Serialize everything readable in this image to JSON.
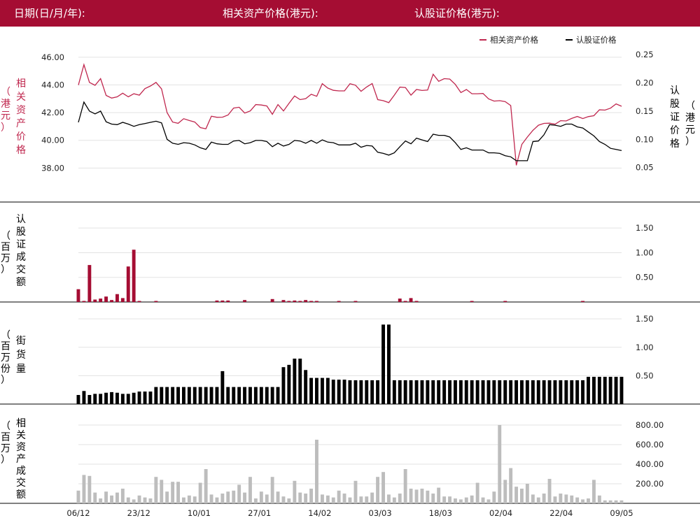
{
  "header": {
    "date_label": "日期(日/月/年):",
    "asset_price_label": "相关资产价格(港元):",
    "warrant_price_label": "认股证价格(港元):"
  },
  "colors": {
    "brand": "#a50d33",
    "asset_line": "#c0284f",
    "warrant_line": "#000000",
    "warrant_turnover_bar": "#a50d33",
    "outstanding_bar": "#000000",
    "asset_turnover_bar": "#bdbdbd"
  },
  "chart_data": [
    {
      "type": "line",
      "legend": [
        "相关资产价格",
        "认股证价格"
      ],
      "legend_position": "top-right",
      "left_axis_label": [
        "相",
        "关",
        "资",
        "产",
        "价",
        "格"
      ],
      "left_axis_unit": [
        "（",
        "港",
        "元",
        "）"
      ],
      "right_axis_label": [
        "认",
        "股",
        "证",
        "价",
        "格"
      ],
      "right_axis_unit": [
        "（",
        "港",
        "元",
        "）"
      ],
      "left_ylim": [
        36.0,
        47.0
      ],
      "left_ticks": [
        "46.00",
        "44.00",
        "42.00",
        "40.00",
        "38.00"
      ],
      "right_ylim": [
        0.0,
        0.27
      ],
      "right_ticks": [
        "0.25",
        "0.20",
        "0.15",
        "0.10",
        "0.05"
      ],
      "grid": true,
      "series": [
        {
          "name": "相关资产价格",
          "axis": "left",
          "values": [
            43.99,
            45.46,
            44.18,
            43.97,
            44.45,
            43.24,
            43.05,
            43.14,
            43.4,
            43.14,
            43.36,
            43.26,
            43.73,
            43.92,
            44.18,
            43.71,
            42.0,
            41.32,
            41.23,
            41.56,
            41.43,
            41.32,
            40.92,
            40.83,
            41.74,
            41.66,
            41.67,
            41.83,
            42.33,
            42.39,
            41.97,
            42.12,
            42.58,
            42.55,
            42.48,
            41.88,
            42.58,
            42.12,
            42.67,
            43.2,
            42.94,
            43.01,
            43.32,
            43.18,
            44.09,
            43.77,
            43.61,
            43.57,
            43.57,
            44.09,
            43.98,
            43.54,
            43.85,
            44.1,
            42.94,
            42.86,
            42.72,
            43.26,
            43.84,
            43.81,
            43.26,
            43.67,
            43.6,
            43.63,
            44.77,
            44.26,
            44.45,
            44.42,
            44.04,
            43.45,
            43.67,
            43.36,
            43.36,
            43.38,
            42.99,
            42.83,
            42.86,
            42.79,
            42.51,
            38.2,
            39.71,
            40.24,
            40.72,
            41.09,
            41.22,
            41.24,
            41.16,
            41.42,
            41.4,
            41.58,
            41.72,
            41.57,
            41.71,
            41.78,
            42.2,
            42.18,
            42.32,
            42.63,
            42.46
          ]
        },
        {
          "name": "认股证价格",
          "axis": "right",
          "values": [
            0.13,
            0.166,
            0.15,
            0.145,
            0.15,
            0.131,
            0.127,
            0.126,
            0.13,
            0.127,
            0.123,
            0.126,
            0.128,
            0.13,
            0.132,
            0.129,
            0.1,
            0.093,
            0.091,
            0.094,
            0.093,
            0.09,
            0.085,
            0.082,
            0.095,
            0.092,
            0.091,
            0.091,
            0.097,
            0.098,
            0.092,
            0.094,
            0.098,
            0.098,
            0.096,
            0.087,
            0.093,
            0.088,
            0.091,
            0.098,
            0.097,
            0.093,
            0.098,
            0.093,
            0.099,
            0.095,
            0.094,
            0.09,
            0.09,
            0.09,
            0.093,
            0.086,
            0.089,
            0.088,
            0.077,
            0.075,
            0.072,
            0.076,
            0.087,
            0.097,
            0.092,
            0.102,
            0.099,
            0.096,
            0.109,
            0.107,
            0.107,
            0.104,
            0.094,
            0.082,
            0.085,
            0.081,
            0.081,
            0.081,
            0.076,
            0.076,
            0.075,
            0.071,
            0.069,
            0.062,
            0.062,
            0.062,
            0.096,
            0.097,
            0.108,
            0.126,
            0.125,
            0.123,
            0.127,
            0.127,
            0.122,
            0.12,
            0.113,
            0.106,
            0.096,
            0.091,
            0.084,
            0.082,
            0.08
          ]
        }
      ]
    },
    {
      "type": "bar",
      "ylabel": [
        "认",
        "股",
        "证",
        "成",
        "交",
        "额"
      ],
      "yunit": [
        "（",
        "百",
        "万",
        "）"
      ],
      "ylim": [
        0,
        1.8
      ],
      "ticks": [
        "1.50",
        "1.00",
        "0.50"
      ],
      "values": [
        0.26,
        0.02,
        0.75,
        0.05,
        0.07,
        0.11,
        0.04,
        0.16,
        0.08,
        0.72,
        1.06,
        0.02,
        0,
        0,
        0.02,
        0,
        0,
        0,
        0,
        0,
        0,
        0,
        0,
        0,
        0,
        0.03,
        0.03,
        0.03,
        0,
        0,
        0.04,
        0,
        0,
        0,
        0,
        0.06,
        0,
        0.04,
        0.02,
        0.03,
        0.02,
        0.04,
        0.02,
        0.02,
        0,
        0,
        0,
        0.02,
        0,
        0,
        0.02,
        0,
        0,
        0,
        0,
        0,
        0,
        0,
        0.07,
        0.01,
        0.08,
        0.02,
        0,
        0,
        0,
        0,
        0,
        0,
        0,
        0,
        0,
        0.02,
        0,
        0,
        0,
        0,
        0,
        0.02,
        0,
        0,
        0,
        0,
        0,
        0,
        0,
        0,
        0,
        0,
        0,
        0,
        0,
        0.02,
        0,
        0,
        0,
        0,
        0,
        0,
        0
      ]
    },
    {
      "type": "bar",
      "ylabel": [
        "街",
        "货",
        "量"
      ],
      "yunit": [
        "（",
        "百",
        "万",
        "份",
        "）"
      ],
      "ylim": [
        0,
        1.6
      ],
      "ticks": [
        "1.50",
        "1.00",
        "0.50"
      ],
      "values": [
        0.16,
        0.23,
        0.16,
        0.18,
        0.18,
        0.2,
        0.21,
        0.2,
        0.18,
        0.18,
        0.2,
        0.22,
        0.22,
        0.22,
        0.3,
        0.3,
        0.3,
        0.3,
        0.3,
        0.3,
        0.3,
        0.3,
        0.3,
        0.3,
        0.3,
        0.3,
        0.58,
        0.3,
        0.3,
        0.3,
        0.3,
        0.3,
        0.3,
        0.3,
        0.3,
        0.3,
        0.3,
        0.65,
        0.69,
        0.8,
        0.8,
        0.6,
        0.46,
        0.46,
        0.46,
        0.46,
        0.43,
        0.43,
        0.43,
        0.42,
        0.42,
        0.42,
        0.42,
        0.42,
        0.42,
        1.4,
        1.4,
        0.42,
        0.42,
        0.42,
        0.42,
        0.42,
        0.42,
        0.42,
        0.42,
        0.42,
        0.42,
        0.42,
        0.42,
        0.42,
        0.42,
        0.42,
        0.42,
        0.42,
        0.42,
        0.42,
        0.42,
        0.42,
        0.42,
        0.42,
        0.42,
        0.42,
        0.42,
        0.42,
        0.42,
        0.42,
        0.42,
        0.42,
        0.42,
        0.42,
        0.42,
        0.42,
        0.48,
        0.48,
        0.48,
        0.48,
        0.48,
        0.48,
        0.48
      ]
    },
    {
      "type": "bar",
      "ylabel": [
        "相",
        "关",
        "资",
        "产",
        "成",
        "交",
        "额"
      ],
      "yunit": [
        "（",
        "百",
        "万",
        "）"
      ],
      "ylim": [
        0,
        900
      ],
      "ticks": [
        "800.00",
        "600.00",
        "400.00",
        "200.00"
      ],
      "x_ticks": [
        "06/12",
        "23/12",
        "10/01",
        "27/01",
        "14/02",
        "03/03",
        "18/03",
        "02/04",
        "22/04",
        "09/05"
      ],
      "values": [
        130,
        290,
        280,
        110,
        50,
        120,
        80,
        110,
        150,
        60,
        40,
        80,
        60,
        50,
        270,
        240,
        120,
        220,
        220,
        60,
        80,
        70,
        210,
        350,
        90,
        60,
        100,
        120,
        130,
        190,
        110,
        270,
        50,
        120,
        90,
        270,
        120,
        70,
        50,
        230,
        110,
        100,
        150,
        650,
        90,
        80,
        60,
        130,
        100,
        60,
        230,
        70,
        70,
        110,
        270,
        320,
        90,
        60,
        100,
        350,
        150,
        140,
        150,
        130,
        100,
        160,
        70,
        70,
        50,
        40,
        60,
        80,
        210,
        60,
        40,
        120,
        800,
        240,
        360,
        170,
        150,
        200,
        90,
        60,
        100,
        250,
        70,
        100,
        90,
        80,
        60,
        40,
        50,
        240,
        80,
        30,
        30,
        30,
        30
      ]
    }
  ]
}
